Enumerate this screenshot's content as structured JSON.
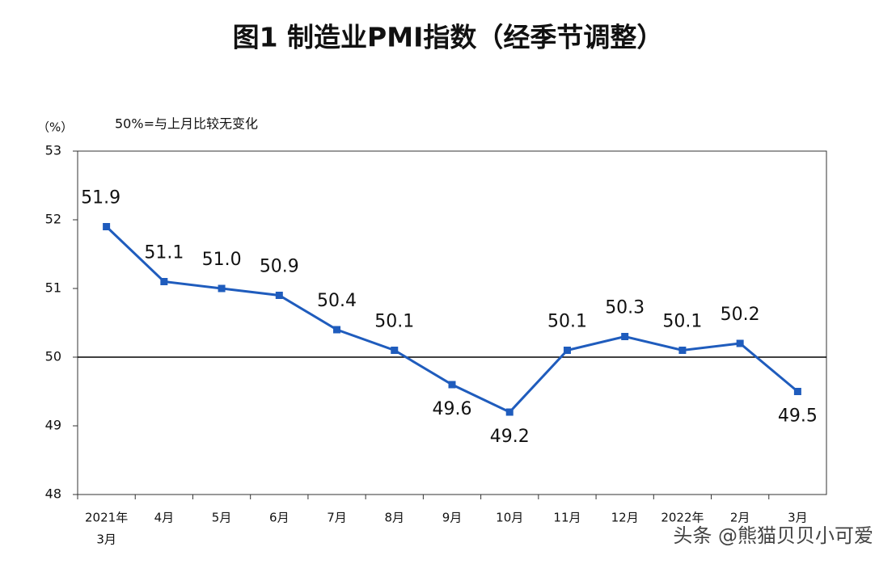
{
  "chart_data": {
    "type": "line",
    "title": "图1 制造业PMI指数（经季节调整）",
    "unit_label": "（%）",
    "note": "50%=与上月比较无变化",
    "watermark": "头条 @熊猫贝贝小可爱",
    "categories": [
      [
        "2021年",
        "3月"
      ],
      "4月",
      "5月",
      "6月",
      "7月",
      "8月",
      "9月",
      "10月",
      "11月",
      "12月",
      "2022年",
      "2月",
      "3月"
    ],
    "series": [
      {
        "color": "#1f5cbd",
        "values": [
          51.9,
          51.1,
          51.0,
          50.9,
          50.4,
          50.1,
          49.6,
          49.2,
          50.1,
          50.3,
          50.1,
          50.2,
          49.5
        ],
        "value_labels": [
          "51.9",
          "51.1",
          "51.0",
          "50.9",
          "50.4",
          "50.1",
          "49.6",
          "49.2",
          "50.1",
          "50.3",
          "50.1",
          "50.2",
          "49.5"
        ]
      }
    ],
    "ylim": [
      48,
      53
    ],
    "yticks": [
      48,
      49,
      50,
      51,
      52,
      53
    ],
    "reference_line": 50
  }
}
